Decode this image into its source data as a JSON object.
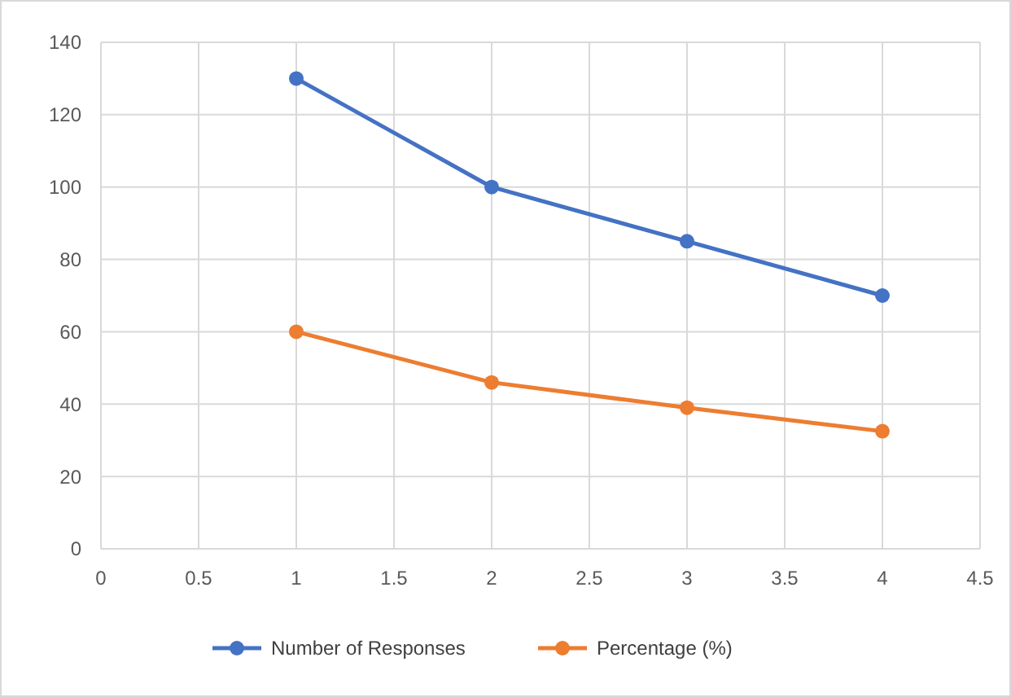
{
  "chart_data": {
    "type": "line",
    "x": [
      1,
      2,
      3,
      4
    ],
    "series": [
      {
        "name": "Number of Responses",
        "color": "#4472c4",
        "values": [
          130,
          100,
          85,
          70
        ]
      },
      {
        "name": "Percentage (%)",
        "color": "#ed7d31",
        "values": [
          60,
          46,
          39,
          32.5
        ]
      }
    ],
    "xlim": [
      0,
      4.5
    ],
    "xticks": [
      0,
      0.5,
      1,
      1.5,
      2,
      2.5,
      3,
      3.5,
      4,
      4.5
    ],
    "ylim": [
      0,
      140
    ],
    "yticks": [
      0,
      20,
      40,
      60,
      80,
      100,
      120,
      140
    ],
    "grid": true,
    "legend": "bottom",
    "marker": "circle",
    "line_style": "solid"
  }
}
